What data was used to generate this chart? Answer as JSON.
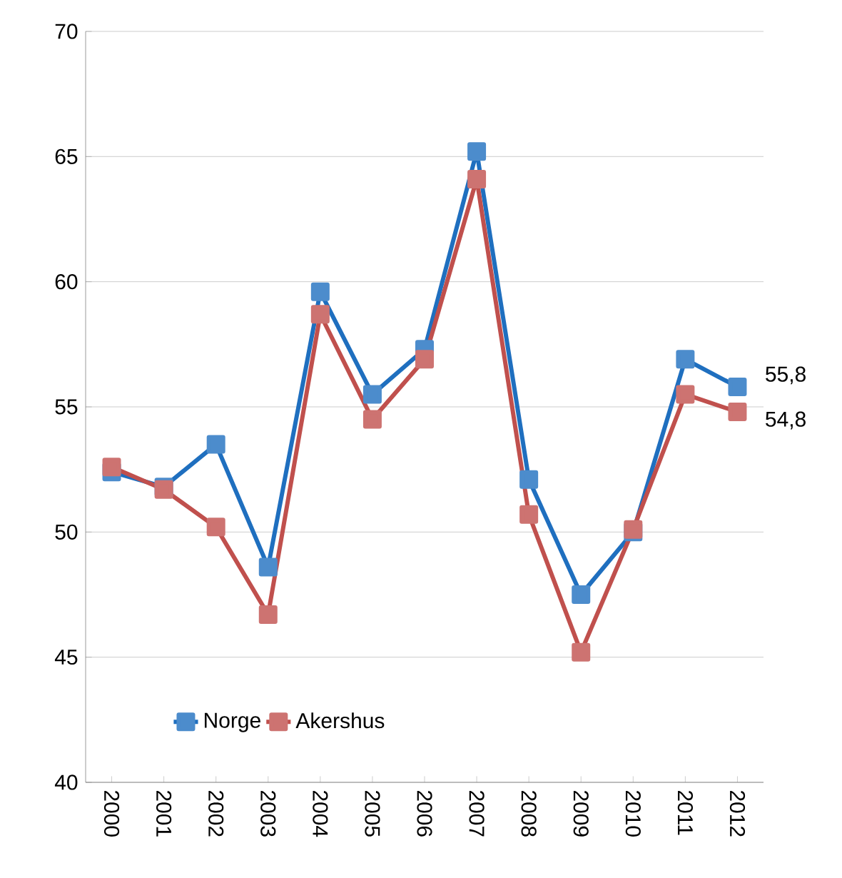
{
  "chart_data": {
    "type": "line",
    "categories": [
      "2000",
      "2001",
      "2002",
      "2003",
      "2004",
      "2005",
      "2006",
      "2007",
      "2008",
      "2009",
      "2010",
      "2011",
      "2012"
    ],
    "series": [
      {
        "name": "Norge",
        "color": "#1f6fbf",
        "values": [
          52.4,
          51.8,
          53.5,
          48.6,
          59.6,
          55.5,
          57.3,
          65.2,
          52.1,
          47.5,
          50.0,
          56.9,
          55.8
        ],
        "value_labels": [
          null,
          null,
          null,
          null,
          null,
          null,
          null,
          null,
          null,
          null,
          null,
          null,
          "55,8"
        ]
      },
      {
        "name": "Akershus",
        "color": "#c0504d",
        "values": [
          52.6,
          51.7,
          50.2,
          46.7,
          58.7,
          54.5,
          56.9,
          64.1,
          50.7,
          45.2,
          50.1,
          55.5,
          54.8
        ],
        "value_labels": [
          null,
          null,
          null,
          null,
          null,
          null,
          null,
          null,
          null,
          null,
          null,
          null,
          "54,8"
        ]
      }
    ],
    "ylim": [
      40,
      70
    ],
    "yticks": [
      40,
      45,
      50,
      55,
      60,
      65,
      70
    ],
    "grid": "y",
    "legend": "bottom left",
    "marker": "square",
    "line_style": "solid"
  }
}
